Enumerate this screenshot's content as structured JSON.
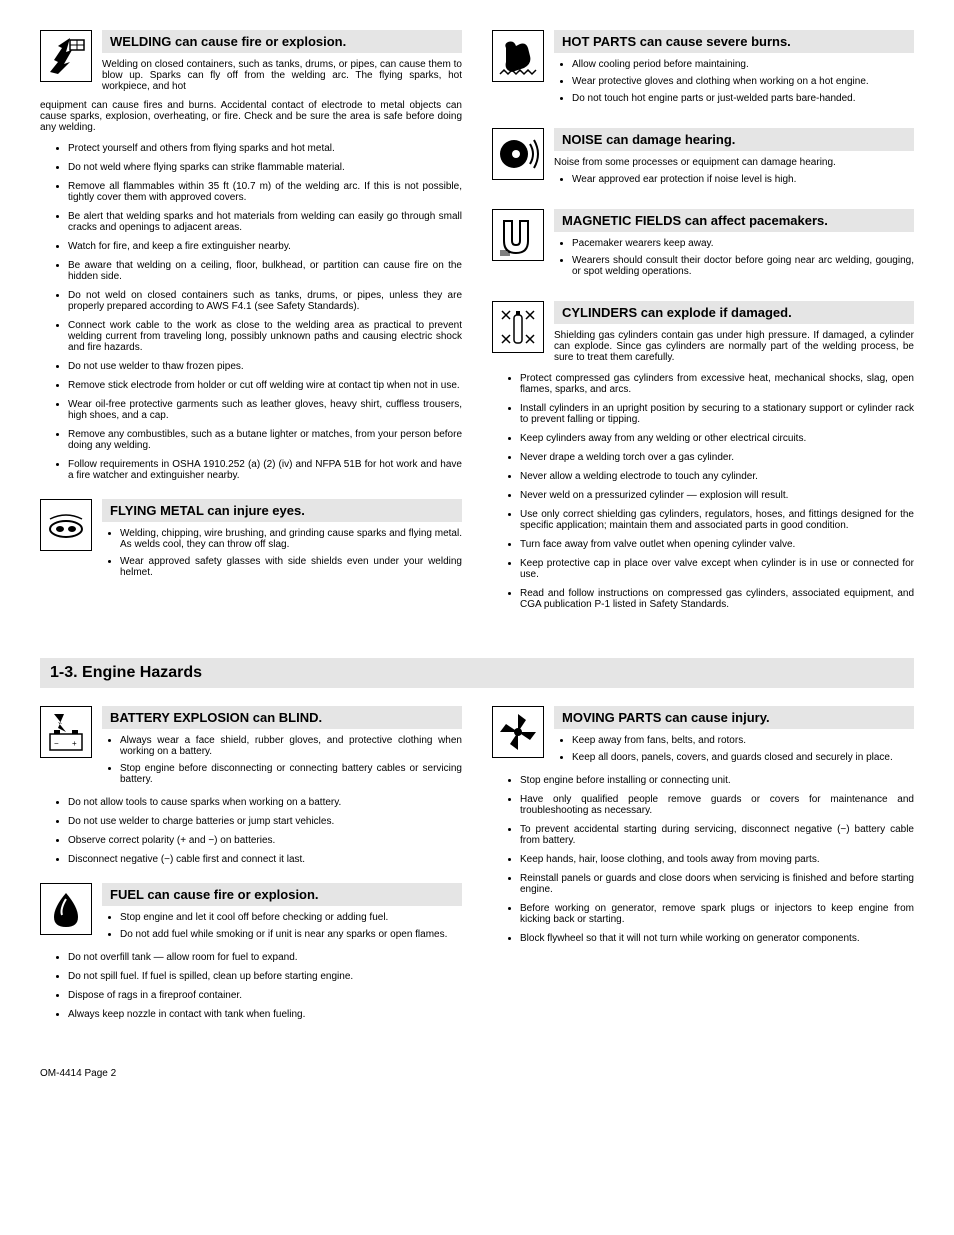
{
  "colors": {
    "heading_bg": "#e5e5e5",
    "text": "#000000",
    "page_bg": "#ffffff"
  },
  "top": {
    "left": [
      {
        "title": "WELDING can cause fire or explosion.",
        "icon": "welding-fire-icon",
        "intro_inline": "Welding on closed containers, such as tanks, drums, or pipes, can cause them to blow up. Sparks can fly off from the welding arc. The flying sparks, hot workpiece, and hot",
        "intro_after": "equipment can cause fires and burns. Accidental contact of electrode to metal objects can cause sparks, explosion, overheating, or fire. Check and be sure the area is safe before doing any welding.",
        "bullets": [
          "Protect yourself and others from flying sparks and hot metal.",
          "Do not weld where flying sparks can strike flammable material.",
          "Remove all flammables within 35 ft (10.7 m) of the welding arc. If this is not possible, tightly cover them with approved covers.",
          "Be alert that welding sparks and hot materials from welding can easily go through small cracks and openings to adjacent areas.",
          "Watch for fire, and keep a fire extinguisher nearby.",
          "Be aware that welding on a ceiling, floor, bulkhead, or partition can cause fire on the hidden side.",
          "Do not weld on closed containers such as tanks, drums, or pipes, unless they are properly prepared according to AWS F4.1 (see Safety Standards).",
          "Connect work cable to the work as close to the welding area as practical to prevent welding current from traveling long, possibly unknown paths and causing electric shock and fire hazards.",
          "Do not use welder to thaw frozen pipes.",
          "Remove stick electrode from holder or cut off welding wire at contact tip when not in use.",
          "Wear oil-free protective garments such as leather gloves, heavy shirt, cuffless trousers, high shoes, and a cap.",
          "Remove any combustibles, such as a butane lighter or matches, from your person before doing any welding.",
          "Follow requirements in OSHA 1910.252 (a) (2) (iv) and NFPA 51B for hot work and have a fire watcher and extinguisher nearby."
        ]
      },
      {
        "title": "FLYING METAL can injure eyes.",
        "icon": "flying-metal-icon",
        "sub_bullets": [
          "Welding, chipping, wire brushing, and grinding cause sparks and flying metal. As welds cool, they can throw off slag.",
          "Wear approved safety glasses with side shields even under your welding helmet."
        ]
      }
    ],
    "right": [
      {
        "title": "HOT PARTS can cause severe burns.",
        "icon": "hot-parts-icon",
        "sub_bullets": [
          "Allow cooling period before maintaining.",
          "Wear protective gloves and clothing when working on a hot engine.",
          "Do not touch hot engine parts or just-welded parts bare-handed."
        ]
      },
      {
        "title": "NOISE can damage hearing.",
        "icon": "noise-icon",
        "intro_inline": "Noise from some processes or equipment can damage hearing.",
        "sub_bullets": [
          "Wear approved ear protection if noise level is high."
        ]
      },
      {
        "title": "MAGNETIC FIELDS can affect pacemakers.",
        "icon": "magnetic-icon",
        "sub_bullets": [
          "Pacemaker wearers keep away.",
          "Wearers should consult their doctor before going near arc welding, gouging, or spot welding operations."
        ]
      },
      {
        "title": "CYLINDERS can explode if damaged.",
        "icon": "cylinder-icon",
        "intro_inline": "Shielding gas cylinders contain gas under high pressure. If damaged, a cylinder can explode. Since gas cylinders are normally part of the welding process, be sure to treat them carefully.",
        "bullets": [
          "Protect compressed gas cylinders from excessive heat, mechanical shocks, slag, open flames, sparks, and arcs.",
          "Install cylinders in an upright position by securing to a stationary support or cylinder rack to prevent falling or tipping.",
          "Keep cylinders away from any welding or other electrical circuits.",
          "Never drape a welding torch over a gas cylinder.",
          "Never allow a welding electrode to touch any cylinder.",
          "Never weld on a pressurized cylinder — explosion will result.",
          "Use only correct shielding gas cylinders, regulators, hoses, and fittings designed for the specific application; maintain them and associated parts in good condition.",
          "Turn face away from valve outlet when opening cylinder valve.",
          "Keep protective cap in place over valve except when cylinder is in use or connected for use.",
          "Read and follow instructions on compressed gas cylinders, associated equipment, and CGA publication P-1 listed in Safety Standards."
        ]
      }
    ]
  },
  "section_heading": "1-3.   Engine Hazards",
  "bottom": {
    "left": [
      {
        "title": "BATTERY EXPLOSION can BLIND.",
        "icon": "battery-icon",
        "sub_bullets": [
          "Always wear a face shield, rubber gloves, and protective clothing when working on a battery.",
          "Stop engine before disconnecting or connecting battery cables or servicing battery."
        ],
        "bullets": [
          "Do not allow tools to cause sparks when working on a battery.",
          "Do not use welder to charge batteries or jump start vehicles.",
          "Observe correct polarity (+ and −) on batteries.",
          "Disconnect negative (−) cable first and connect it last."
        ]
      },
      {
        "title": "FUEL can cause fire or explosion.",
        "icon": "fuel-icon",
        "sub_bullets": [
          "Stop engine and let it cool off before checking or adding fuel.",
          "Do not add fuel while smoking or if unit is near any sparks or open flames."
        ],
        "bullets": [
          "Do not overfill tank — allow room for fuel to expand.",
          "Do not spill fuel. If fuel is spilled, clean up before starting engine.",
          "Dispose of rags in a fireproof container.",
          "Always keep nozzle in contact with tank when fueling."
        ]
      }
    ],
    "right": [
      {
        "title": "MOVING PARTS can cause injury.",
        "icon": "moving-parts-icon",
        "sub_bullets": [
          "Keep away from fans, belts, and rotors.",
          "Keep all doors, panels, covers, and guards closed and securely in place."
        ],
        "bullets": [
          "Stop engine before installing or connecting unit.",
          "Have only qualified people remove guards or covers for maintenance and troubleshooting as necessary.",
          "To prevent accidental starting during servicing, disconnect negative (−) battery cable from battery.",
          "Keep hands, hair, loose clothing, and tools away from moving parts.",
          "Reinstall panels or guards and close doors when servicing is finished and before starting engine.",
          "Before working on generator, remove spark plugs or injectors to keep engine from kicking back or starting.",
          "Block flywheel so that it will not turn while working on generator components."
        ]
      }
    ]
  },
  "footer": "OM-4414 Page 2"
}
